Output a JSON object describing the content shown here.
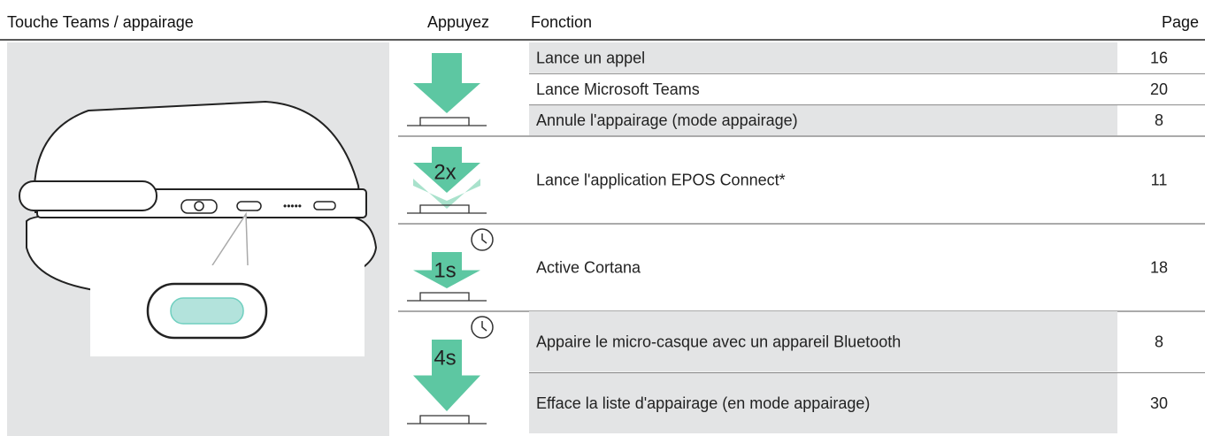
{
  "header": [
    "Touche Teams / appairage",
    "Appuyez",
    "Fonction",
    "Page"
  ],
  "groups": [
    {
      "rows": [
        {
          "function": "Lance un appel",
          "page": 16
        },
        {
          "function": "Lance Microsoft Teams",
          "page": 20
        },
        {
          "function": "Annule l'appairage (mode appairage)",
          "page": 8
        }
      ]
    },
    {
      "press": "2x",
      "rows": [
        {
          "function": "Lance l'application EPOS Connect*",
          "page": 11
        }
      ]
    },
    {
      "press": "1s",
      "rows": [
        {
          "function": "Active Cortana",
          "page": 18
        }
      ]
    },
    {
      "press": "4s",
      "rows": [
        {
          "function": "Appaire le micro-casque avec un appareil Bluetooth",
          "page": 8
        },
        {
          "function": "Efface la liste d'appairage (en mode appairage)",
          "page": 30
        }
      ]
    }
  ]
}
